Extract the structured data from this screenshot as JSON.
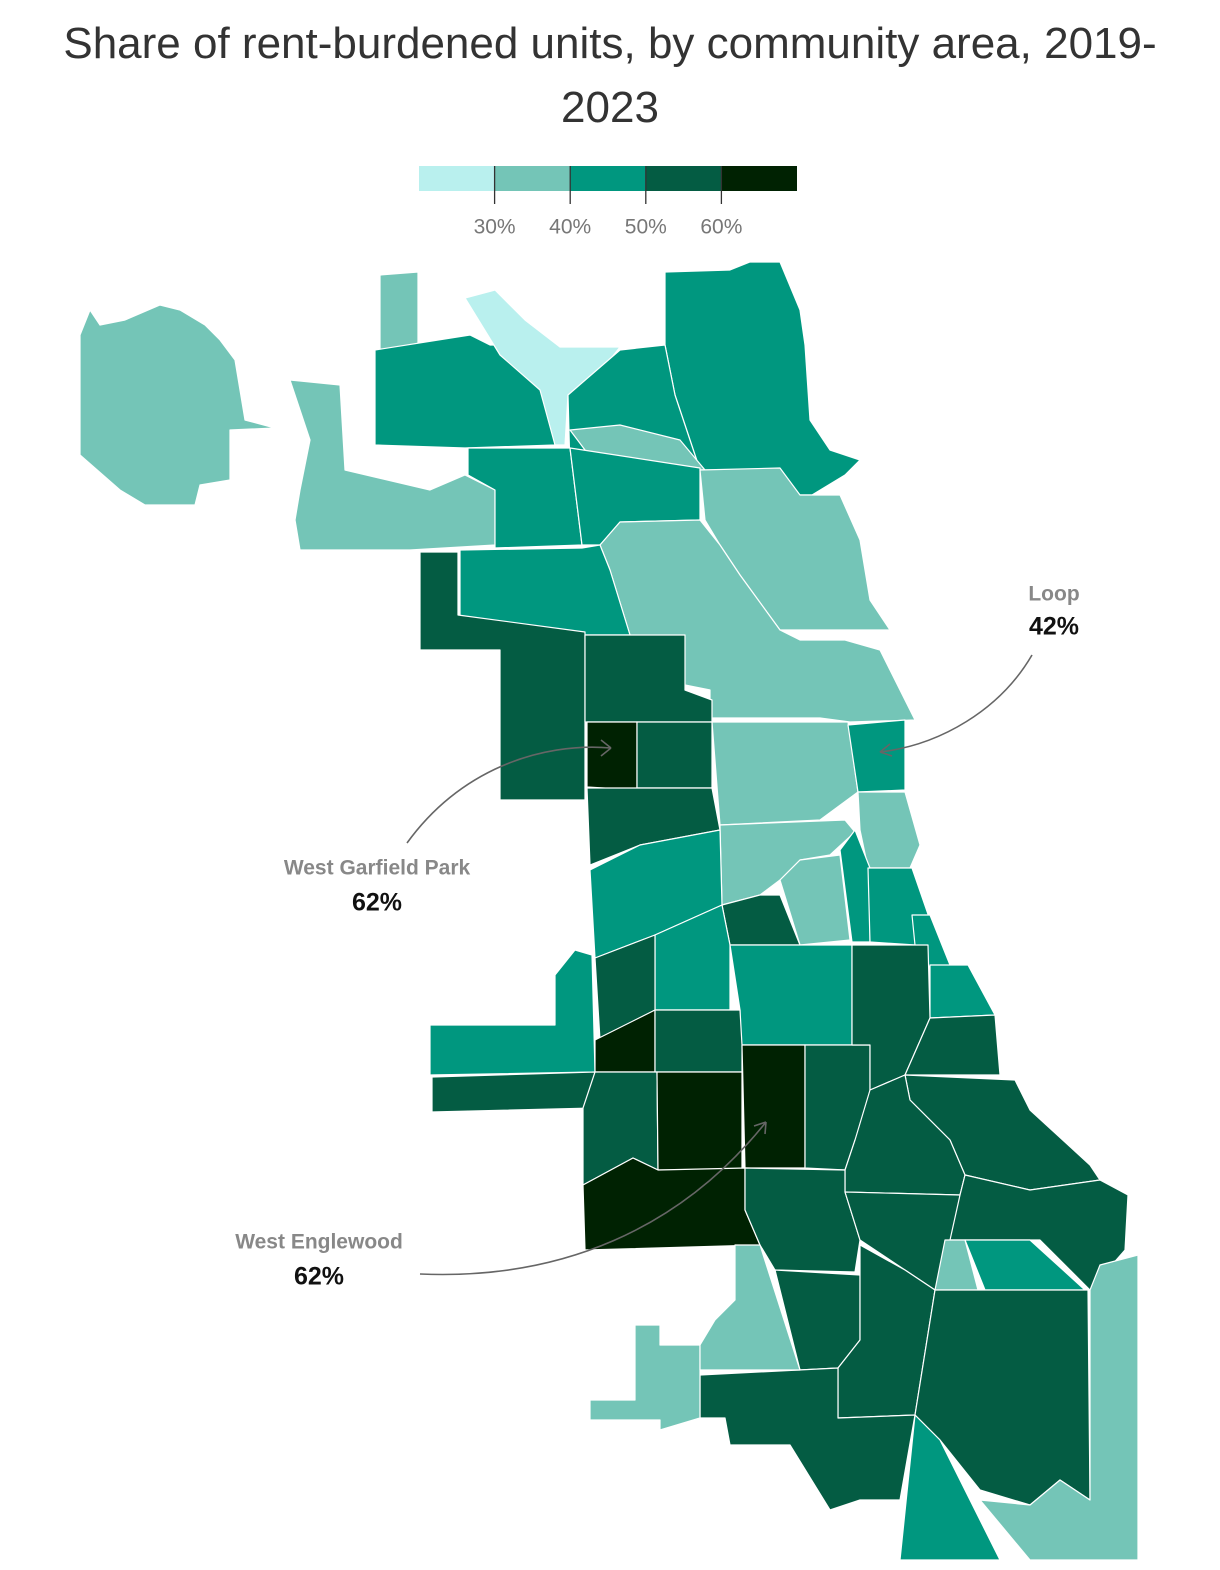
{
  "title": "Share of rent-burdened units, by community area, 2019-2023",
  "legend": {
    "colors": [
      "#b9f0ee",
      "#74c5b7",
      "#00977f",
      "#045c43",
      "#002202"
    ],
    "range": [
      20,
      70
    ],
    "ticks": [
      {
        "value": 30,
        "label": "30%"
      },
      {
        "value": 40,
        "label": "40%"
      },
      {
        "value": 50,
        "label": "50%"
      },
      {
        "value": 60,
        "label": "60%"
      }
    ]
  },
  "annotations": [
    {
      "label": "Loop",
      "value": 42,
      "value_label": "42%"
    },
    {
      "label": "West Garfield Park",
      "value": 62,
      "value_label": "62%"
    },
    {
      "label": "West Englewood",
      "value": 62,
      "value_label": "62%"
    }
  ]
}
